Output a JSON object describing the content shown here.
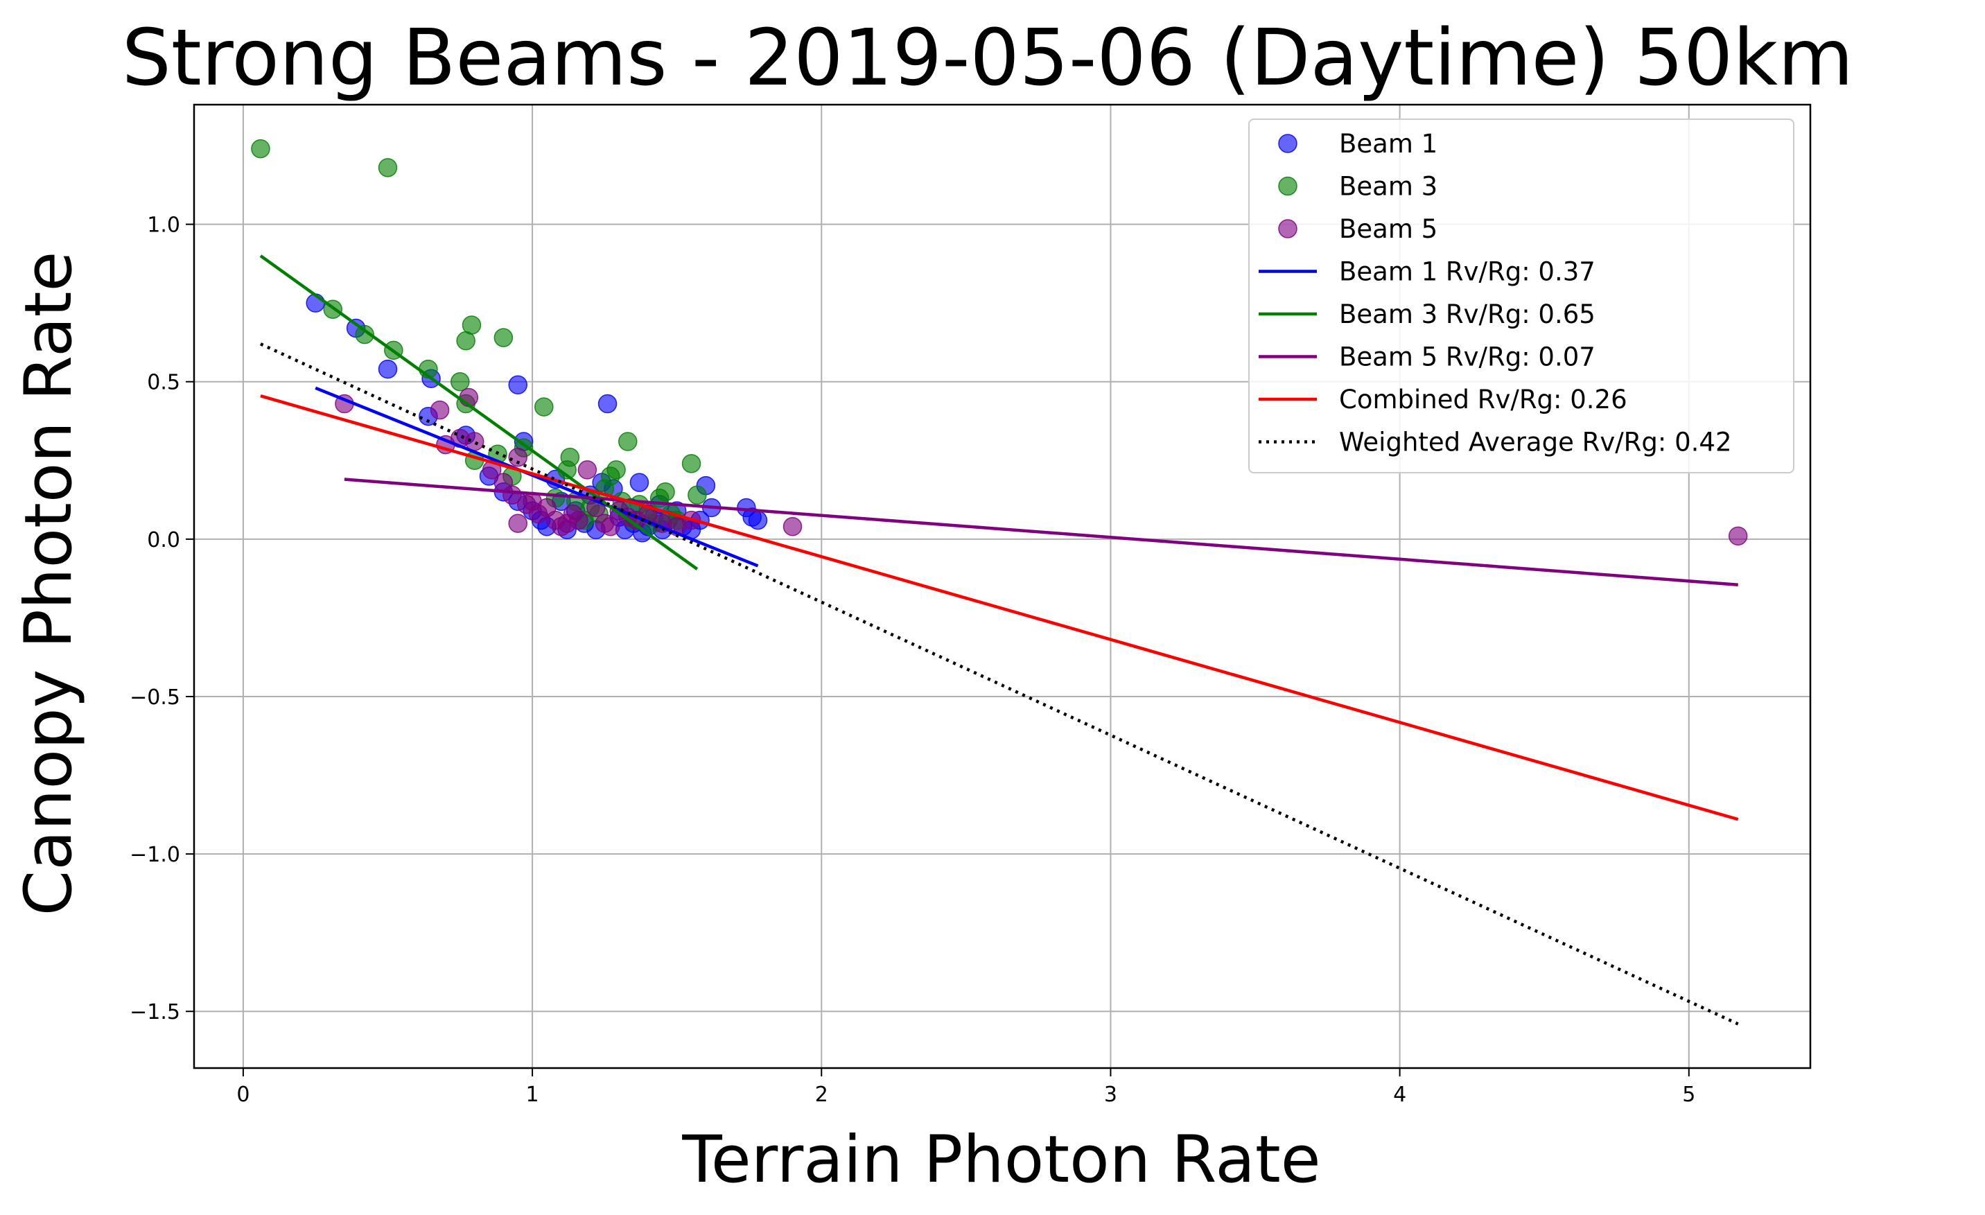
{
  "chart_data": {
    "type": "scatter",
    "title": "Strong Beams - 2019-05-06 (Daytime) 50km",
    "xlabel": "Terrain Photon Rate",
    "ylabel": "Canopy Photon Rate",
    "xlim": [
      -0.17,
      5.42
    ],
    "ylim": [
      -1.68,
      1.38
    ],
    "xticks": [
      0,
      1,
      2,
      3,
      4,
      5
    ],
    "xtick_labels": [
      "0",
      "1",
      "2",
      "3",
      "4",
      "5"
    ],
    "yticks": [
      1.0,
      0.5,
      0.0,
      -0.5,
      -1.0,
      -1.5
    ],
    "ytick_labels": [
      "1.0",
      "0.5",
      "0.0",
      "−0.5",
      "−1.0",
      "−1.5"
    ],
    "grid": true,
    "legend_position": "top-right",
    "series": [
      {
        "name": "Beam 1",
        "kind": "scatter",
        "color": "#0000ff",
        "points": [
          [
            0.25,
            0.75
          ],
          [
            0.39,
            0.67
          ],
          [
            0.5,
            0.54
          ],
          [
            0.65,
            0.51
          ],
          [
            0.64,
            0.39
          ],
          [
            0.77,
            0.33
          ],
          [
            0.95,
            0.49
          ],
          [
            0.97,
            0.31
          ],
          [
            0.85,
            0.2
          ],
          [
            0.9,
            0.15
          ],
          [
            0.95,
            0.12
          ],
          [
            1.0,
            0.09
          ],
          [
            1.03,
            0.06
          ],
          [
            1.05,
            0.04
          ],
          [
            1.08,
            0.19
          ],
          [
            1.1,
            0.12
          ],
          [
            1.12,
            0.03
          ],
          [
            1.15,
            0.09
          ],
          [
            1.18,
            0.05
          ],
          [
            1.2,
            0.14
          ],
          [
            1.22,
            0.03
          ],
          [
            1.24,
            0.18
          ],
          [
            1.26,
            0.43
          ],
          [
            1.28,
            0.16
          ],
          [
            1.3,
            0.07
          ],
          [
            1.32,
            0.03
          ],
          [
            1.34,
            0.1
          ],
          [
            1.35,
            0.05
          ],
          [
            1.37,
            0.18
          ],
          [
            1.38,
            0.02
          ],
          [
            1.4,
            0.04
          ],
          [
            1.42,
            0.07
          ],
          [
            1.44,
            0.11
          ],
          [
            1.45,
            0.03
          ],
          [
            1.47,
            0.06
          ],
          [
            1.5,
            0.09
          ],
          [
            1.52,
            0.04
          ],
          [
            1.55,
            0.03
          ],
          [
            1.58,
            0.06
          ],
          [
            1.6,
            0.17
          ],
          [
            1.62,
            0.1
          ],
          [
            1.74,
            0.1
          ],
          [
            1.76,
            0.07
          ],
          [
            1.78,
            0.06
          ]
        ]
      },
      {
        "name": "Beam 3",
        "kind": "scatter",
        "color": "#008000",
        "points": [
          [
            0.06,
            1.24
          ],
          [
            0.5,
            1.18
          ],
          [
            0.31,
            0.73
          ],
          [
            0.42,
            0.65
          ],
          [
            0.52,
            0.6
          ],
          [
            0.64,
            0.54
          ],
          [
            0.75,
            0.5
          ],
          [
            0.77,
            0.63
          ],
          [
            0.79,
            0.68
          ],
          [
            0.9,
            0.64
          ],
          [
            0.77,
            0.43
          ],
          [
            0.8,
            0.25
          ],
          [
            0.88,
            0.27
          ],
          [
            0.93,
            0.2
          ],
          [
            0.97,
            0.29
          ],
          [
            1.04,
            0.42
          ],
          [
            1.08,
            0.13
          ],
          [
            1.12,
            0.22
          ],
          [
            1.13,
            0.26
          ],
          [
            1.15,
            0.12
          ],
          [
            1.18,
            0.06
          ],
          [
            1.2,
            0.1
          ],
          [
            1.23,
            0.08
          ],
          [
            1.25,
            0.16
          ],
          [
            1.27,
            0.2
          ],
          [
            1.29,
            0.22
          ],
          [
            1.31,
            0.12
          ],
          [
            1.33,
            0.31
          ],
          [
            1.35,
            0.06
          ],
          [
            1.37,
            0.11
          ],
          [
            1.4,
            0.09
          ],
          [
            1.42,
            0.05
          ],
          [
            1.44,
            0.13
          ],
          [
            1.46,
            0.15
          ],
          [
            1.48,
            0.08
          ],
          [
            1.5,
            0.06
          ],
          [
            1.55,
            0.24
          ],
          [
            1.57,
            0.14
          ]
        ]
      },
      {
        "name": "Beam 5",
        "kind": "scatter",
        "color": "#800080",
        "points": [
          [
            0.35,
            0.43
          ],
          [
            0.68,
            0.41
          ],
          [
            0.7,
            0.3
          ],
          [
            0.75,
            0.32
          ],
          [
            0.78,
            0.45
          ],
          [
            0.8,
            0.31
          ],
          [
            0.86,
            0.22
          ],
          [
            0.9,
            0.18
          ],
          [
            0.93,
            0.14
          ],
          [
            0.95,
            0.26
          ],
          [
            0.95,
            0.05
          ],
          [
            0.98,
            0.11
          ],
          [
            1.0,
            0.12
          ],
          [
            1.02,
            0.08
          ],
          [
            1.05,
            0.1
          ],
          [
            1.08,
            0.06
          ],
          [
            1.1,
            0.04
          ],
          [
            1.12,
            0.05
          ],
          [
            1.14,
            0.08
          ],
          [
            1.16,
            0.06
          ],
          [
            1.19,
            0.22
          ],
          [
            1.22,
            0.1
          ],
          [
            1.25,
            0.05
          ],
          [
            1.27,
            0.04
          ],
          [
            1.3,
            0.09
          ],
          [
            1.33,
            0.07
          ],
          [
            1.36,
            0.06
          ],
          [
            1.4,
            0.08
          ],
          [
            1.45,
            0.05
          ],
          [
            1.5,
            0.04
          ],
          [
            1.55,
            0.06
          ],
          [
            1.9,
            0.04
          ],
          [
            5.17,
            0.01
          ]
        ]
      },
      {
        "name": "Beam 1 Rv/Rg: 0.37",
        "kind": "line",
        "style": "solid",
        "color": "#0000ff",
        "points": [
          [
            0.25,
            0.48
          ],
          [
            1.78,
            -0.085
          ]
        ]
      },
      {
        "name": "Beam 3 Rv/Rg: 0.65",
        "kind": "line",
        "style": "solid",
        "color": "#008000",
        "points": [
          [
            0.06,
            0.9
          ],
          [
            1.57,
            -0.095
          ]
        ]
      },
      {
        "name": "Beam 5 Rv/Rg: 0.07",
        "kind": "line",
        "style": "solid",
        "color": "#800080",
        "points": [
          [
            0.35,
            0.19
          ],
          [
            5.17,
            -0.145
          ]
        ]
      },
      {
        "name": "Combined Rv/Rg: 0.26",
        "kind": "line",
        "style": "solid",
        "color": "#ff0000",
        "points": [
          [
            0.06,
            0.455
          ],
          [
            5.17,
            -0.89
          ]
        ]
      },
      {
        "name": "Weighted Average Rv/Rg: 0.42",
        "kind": "line",
        "style": "dotted",
        "color": "#000000",
        "points": [
          [
            0.06,
            0.62
          ],
          [
            5.17,
            -1.54
          ]
        ]
      }
    ]
  }
}
